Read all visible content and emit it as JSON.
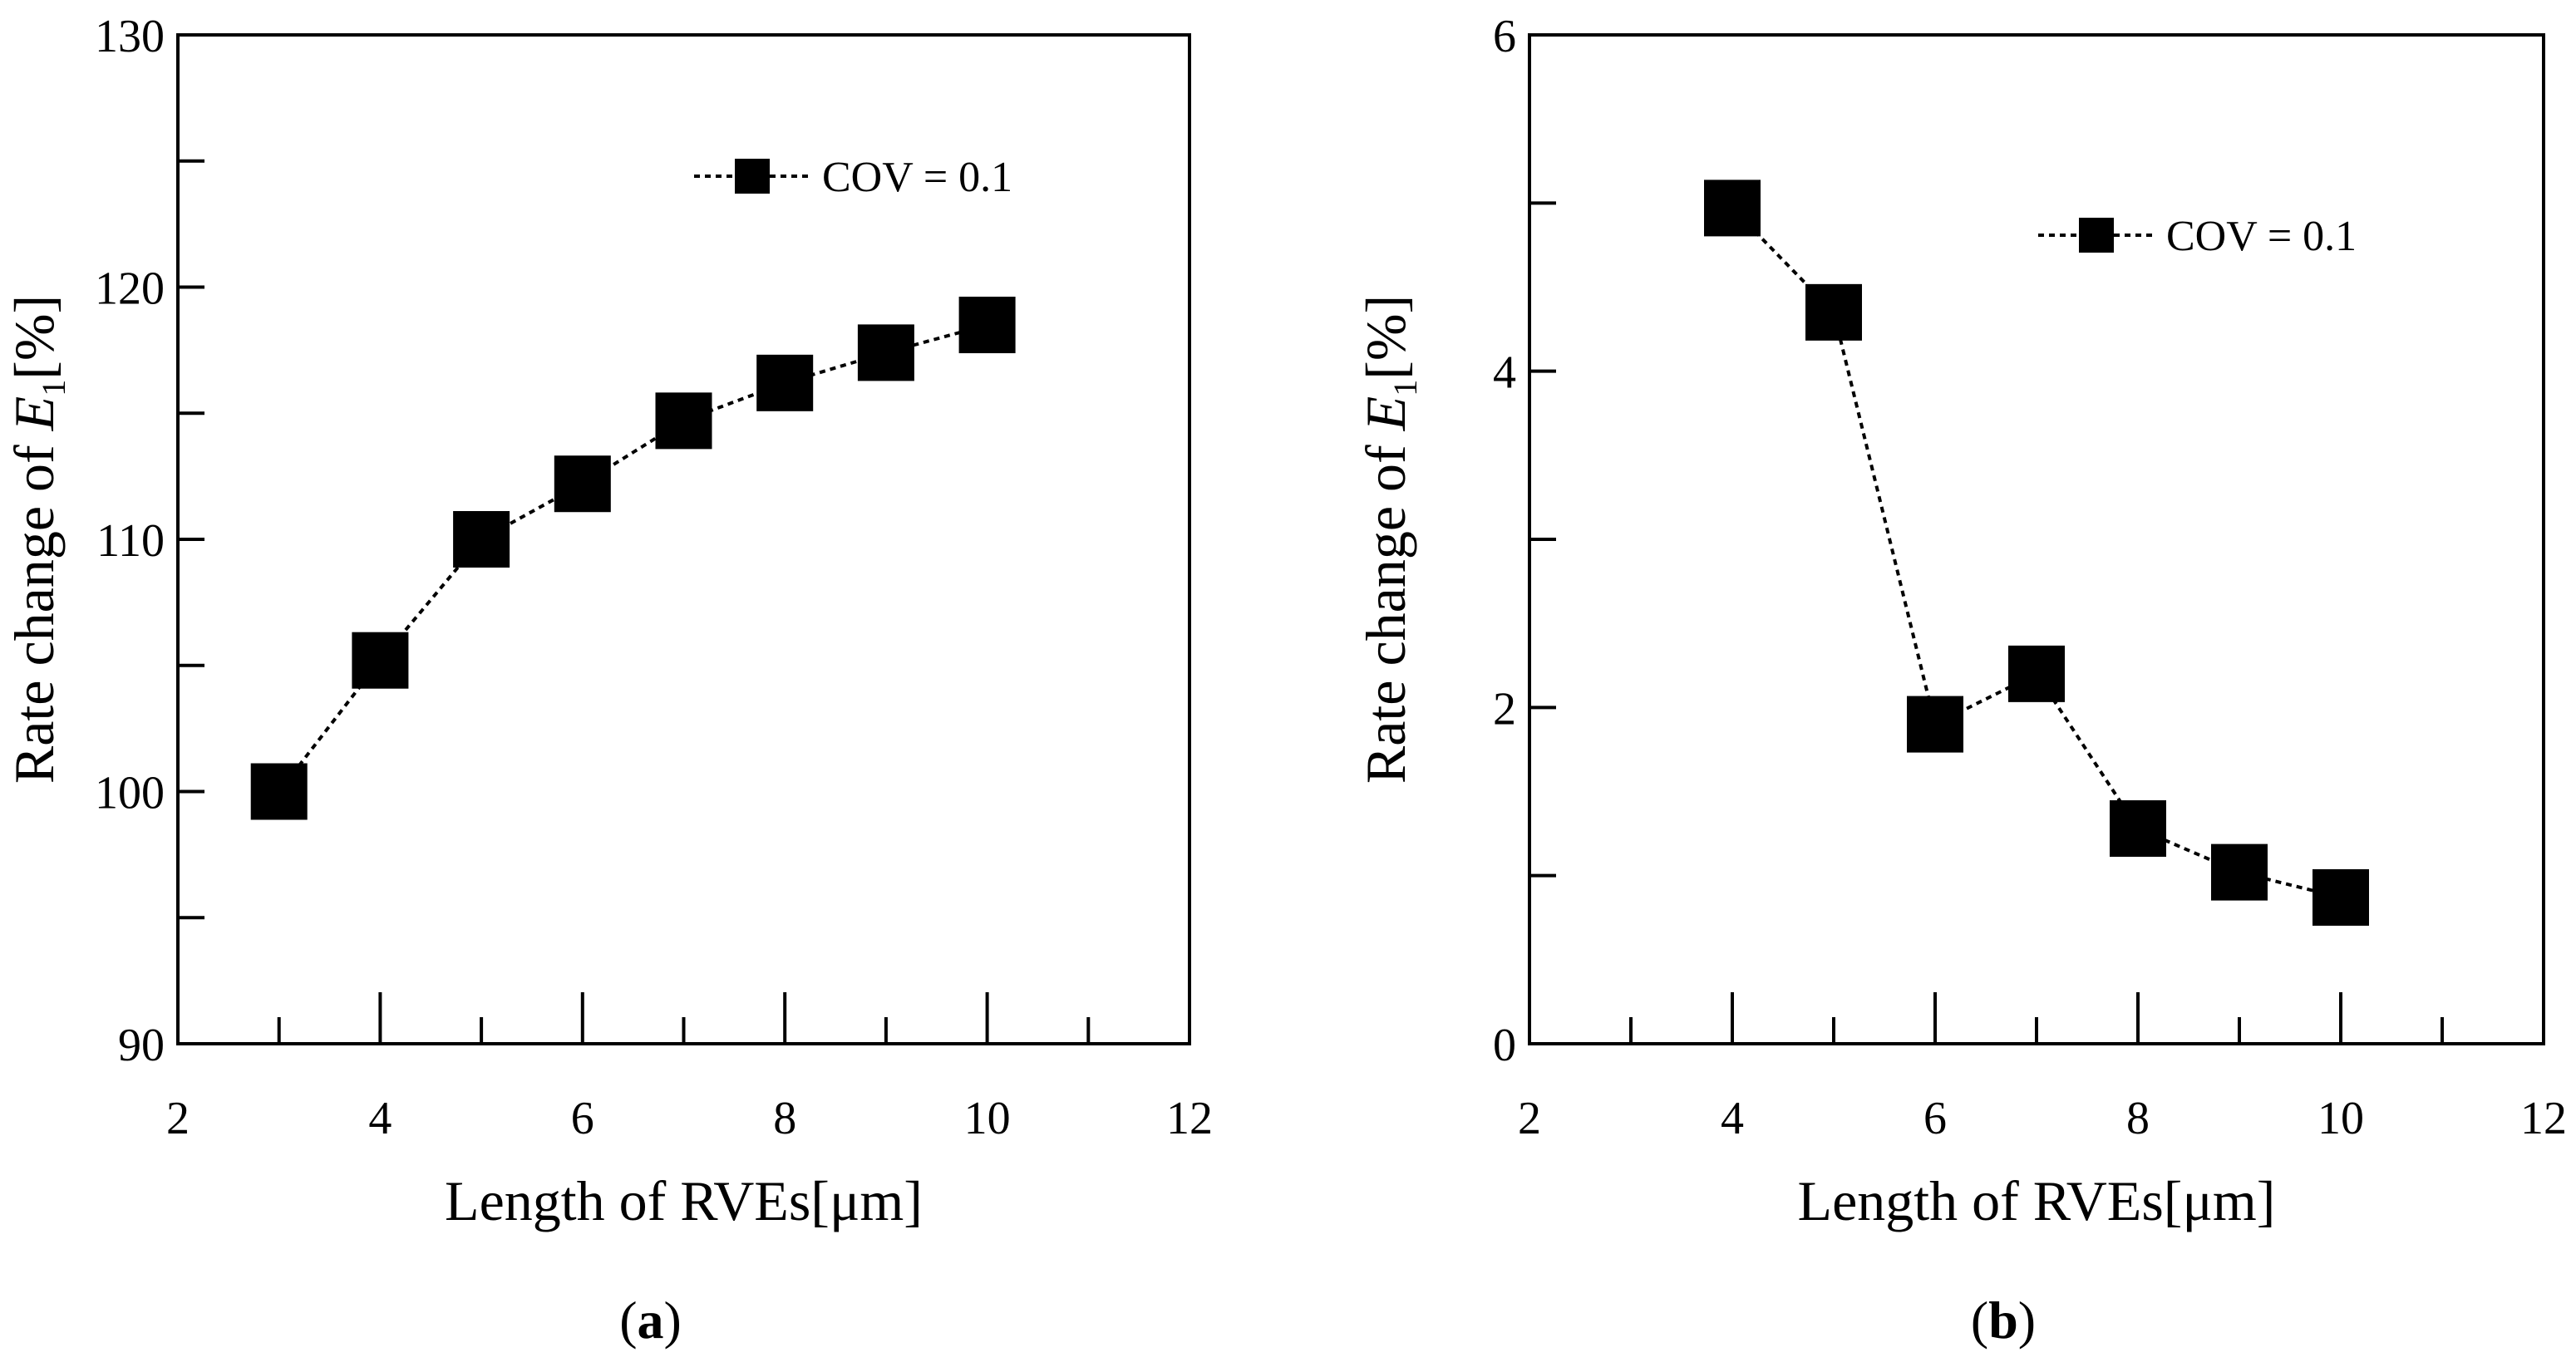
{
  "chart_data": [
    {
      "type": "line",
      "panel_label": "a",
      "xlabel": "Length of  RVEs[μm]",
      "ylabel_prefix": "Rate change of ",
      "ylabel_var": "E",
      "ylabel_sub": "1",
      "ylabel_suffix": "[%]",
      "xlim": [
        2,
        12
      ],
      "ylim": [
        90,
        130
      ],
      "x_major_ticks": [
        2,
        4,
        6,
        8,
        10,
        12
      ],
      "x_minor_ticks": [
        3,
        5,
        7,
        9,
        11
      ],
      "y_major_ticks": [
        90,
        100,
        110,
        120,
        130
      ],
      "y_minor_ticks": [
        95,
        105,
        115,
        125
      ],
      "x_tick_labels": [
        "2",
        "4",
        "6",
        "8",
        "10",
        "12"
      ],
      "y_tick_labels": [
        "90",
        "100",
        "110",
        "120",
        "130"
      ],
      "legend_position": "top-right",
      "series": [
        {
          "name": "COV = 0.1",
          "marker": "square",
          "line_style": "dotted",
          "color": "#000000",
          "x": [
            3,
            4,
            5,
            6,
            7,
            8,
            9,
            10
          ],
          "values": [
            100.0,
            105.2,
            110.0,
            112.2,
            114.7,
            116.2,
            117.4,
            118.5
          ]
        }
      ]
    },
    {
      "type": "line",
      "panel_label": "b",
      "xlabel": "Length of  RVEs[μm]",
      "ylabel_prefix": "Rate change of ",
      "ylabel_var": "E",
      "ylabel_sub": "1",
      "ylabel_suffix": "[%]",
      "xlim": [
        2,
        12
      ],
      "ylim": [
        0,
        6
      ],
      "x_major_ticks": [
        2,
        4,
        6,
        8,
        10,
        12
      ],
      "x_minor_ticks": [
        3,
        5,
        7,
        9,
        11
      ],
      "y_major_ticks": [
        0,
        2,
        4,
        6
      ],
      "y_minor_ticks": [
        1,
        3,
        5
      ],
      "x_tick_labels": [
        "2",
        "4",
        "6",
        "8",
        "10",
        "12"
      ],
      "y_tick_labels": [
        "0",
        "2",
        "4",
        "6"
      ],
      "legend_position": "top-right",
      "series": [
        {
          "name": "COV = 0.1",
          "marker": "square",
          "line_style": "dotted",
          "color": "#000000",
          "x": [
            4,
            5,
            6,
            7,
            8,
            9,
            10
          ],
          "values": [
            4.97,
            4.35,
            1.9,
            2.2,
            1.28,
            1.02,
            0.87
          ]
        }
      ]
    }
  ]
}
